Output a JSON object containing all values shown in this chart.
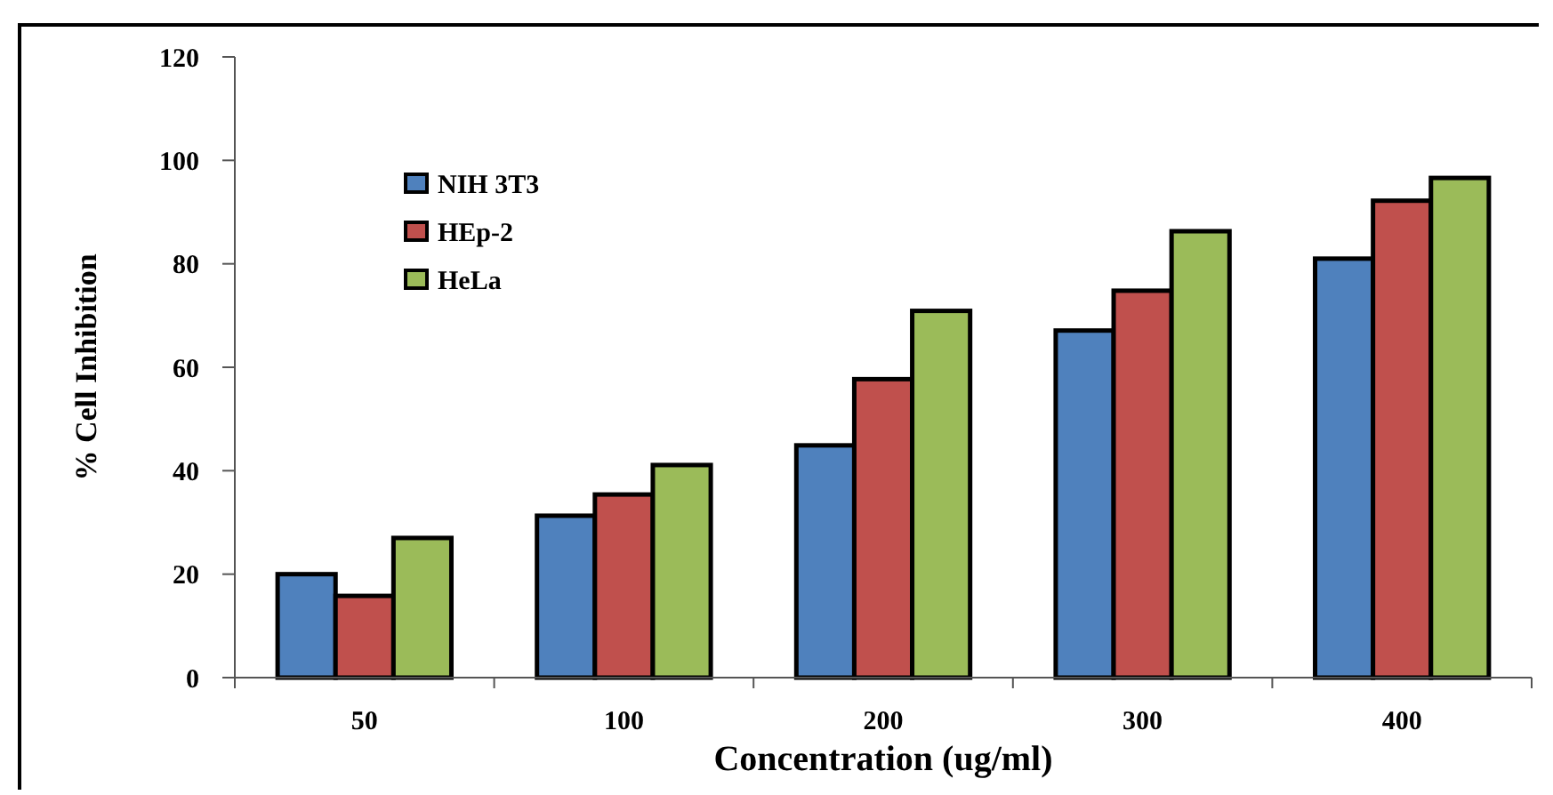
{
  "chart_data": {
    "type": "bar",
    "xlabel": "Concentration (ug/ml)",
    "ylabel": "% Cell Inhibition",
    "categories": [
      "50",
      "100",
      "200",
      "300",
      "400"
    ],
    "series": [
      {
        "name": "NIH 3T3",
        "color": "#4f81bd",
        "values": [
          20,
          31.3,
          44.9,
          67.1,
          81
        ]
      },
      {
        "name": "HEp-2",
        "color": "#c0504d",
        "values": [
          15.8,
          35.4,
          57.7,
          74.8,
          92.2
        ]
      },
      {
        "name": "HeLa",
        "color": "#9bbb59",
        "values": [
          27,
          41.1,
          70.9,
          86.3,
          96.6
        ]
      }
    ],
    "ylim": [
      0,
      120
    ],
    "yticks": [
      0,
      20,
      40,
      60,
      80,
      100,
      120
    ],
    "grid": false,
    "legend": "top left"
  }
}
